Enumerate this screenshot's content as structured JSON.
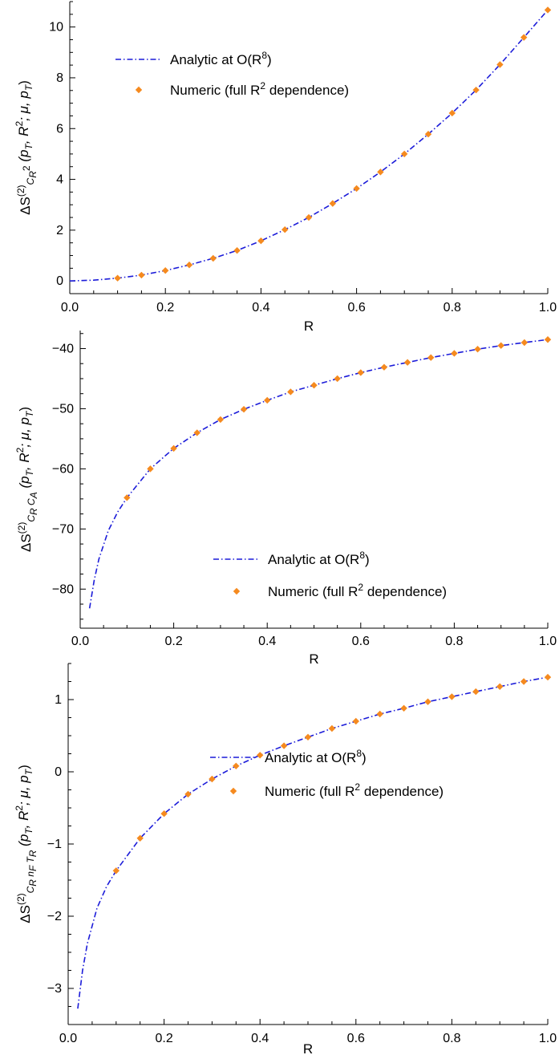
{
  "chart_data": [
    {
      "type": "line",
      "panel": 1,
      "xlabel": "R",
      "ylabel": {
        "prefix": "ΔS",
        "sup": "(2)",
        "sub": "C",
        "sub2": "R",
        "sub3": "2",
        "args": "(p",
        "argsub": "T",
        "mid": ", R",
        "midsup": "2",
        "tail": "; μ, p",
        "tailsub": "T",
        "close": ")"
      },
      "xlim": [
        0,
        1
      ],
      "ylim": [
        -0.5,
        11
      ],
      "xticks": [
        "0.0",
        "0.2",
        "0.4",
        "0.6",
        "0.8",
        "1.0"
      ],
      "xtick_values": [
        0,
        0.2,
        0.4,
        0.6,
        0.8,
        1.0
      ],
      "yticks": [
        "0",
        "2",
        "4",
        "6",
        "8",
        "10"
      ],
      "ytick_values": [
        0,
        2,
        4,
        6,
        8,
        10
      ],
      "legend_position": "top-left",
      "series": [
        {
          "name": "Analytic at O(R⁸)",
          "style": "dash-dot",
          "color": "#1c1cd9",
          "x": [
            0,
            0.05,
            0.1,
            0.15,
            0.2,
            0.25,
            0.3,
            0.35,
            0.4,
            0.45,
            0.5,
            0.55,
            0.6,
            0.65,
            0.7,
            0.75,
            0.8,
            0.85,
            0.9,
            0.95,
            1.0
          ],
          "y": [
            0,
            0.03,
            0.11,
            0.23,
            0.41,
            0.63,
            0.89,
            1.2,
            1.58,
            2.02,
            2.5,
            3.05,
            3.64,
            4.29,
            5.0,
            5.78,
            6.61,
            7.52,
            8.52,
            9.59,
            10.67
          ]
        },
        {
          "name": "Numeric (full R² dependence)",
          "style": "diamond",
          "color": "#f58a1f",
          "x": [
            0.1,
            0.15,
            0.2,
            0.25,
            0.3,
            0.35,
            0.4,
            0.45,
            0.5,
            0.55,
            0.6,
            0.65,
            0.7,
            0.75,
            0.8,
            0.85,
            0.9,
            0.95,
            1.0
          ],
          "y": [
            0.11,
            0.23,
            0.41,
            0.63,
            0.89,
            1.2,
            1.58,
            2.02,
            2.5,
            3.05,
            3.64,
            4.29,
            5.0,
            5.78,
            6.61,
            7.52,
            8.52,
            9.59,
            10.67
          ]
        }
      ]
    },
    {
      "type": "line",
      "panel": 2,
      "xlabel": "R",
      "ylabel": {
        "prefix": "ΔS",
        "sup": "(2)",
        "sub": "C",
        "sub2": "R",
        "sub3": " C",
        "sub4": "A",
        "args": "(p",
        "argsub": "T",
        "mid": ", R",
        "midsup": "2",
        "tail": "; μ, p",
        "tailsub": "T",
        "close": ")"
      },
      "xlim": [
        0,
        1
      ],
      "ylim": [
        -86.5,
        -37
      ],
      "xticks": [
        "0.0",
        "0.2",
        "0.4",
        "0.6",
        "0.8",
        "1.0"
      ],
      "xtick_values": [
        0,
        0.2,
        0.4,
        0.6,
        0.8,
        1.0
      ],
      "yticks": [
        "-80",
        "-70",
        "-60",
        "-50",
        "-40"
      ],
      "ytick_values": [
        -80,
        -70,
        -60,
        -50,
        -40
      ],
      "legend_position": "bottom-right",
      "series": [
        {
          "name": "Analytic at O(R⁸)",
          "style": "dash-dot",
          "color": "#1c1cd9",
          "x": [
            0.02,
            0.03,
            0.04,
            0.06,
            0.08,
            0.1,
            0.15,
            0.2,
            0.25,
            0.3,
            0.35,
            0.4,
            0.45,
            0.5,
            0.55,
            0.6,
            0.65,
            0.7,
            0.75,
            0.8,
            0.85,
            0.9,
            0.95,
            1.0
          ],
          "y": [
            -83.2,
            -78.5,
            -75.0,
            -70.3,
            -67.2,
            -64.8,
            -60.0,
            -56.6,
            -54.0,
            -51.8,
            -50.1,
            -48.6,
            -47.2,
            -46.1,
            -45.0,
            -44.0,
            -43.1,
            -42.3,
            -41.5,
            -40.8,
            -40.1,
            -39.5,
            -39.0,
            -38.5
          ]
        },
        {
          "name": "Numeric (full R² dependence)",
          "style": "diamond",
          "color": "#f58a1f",
          "x": [
            0.1,
            0.15,
            0.2,
            0.25,
            0.3,
            0.35,
            0.4,
            0.45,
            0.5,
            0.55,
            0.6,
            0.65,
            0.7,
            0.75,
            0.8,
            0.85,
            0.9,
            0.95,
            1.0
          ],
          "y": [
            -64.8,
            -60.0,
            -56.6,
            -54.0,
            -51.8,
            -50.1,
            -48.6,
            -47.2,
            -46.1,
            -45.0,
            -44.0,
            -43.1,
            -42.3,
            -41.5,
            -40.8,
            -40.1,
            -39.5,
            -39.0,
            -38.5
          ]
        }
      ]
    },
    {
      "type": "line",
      "panel": 3,
      "xlabel": "R",
      "ylabel": {
        "prefix": "ΔS",
        "sup": "(2)",
        "sub": "C",
        "sub2": "R",
        "sub3": " n",
        "sub4": "F",
        "sub5": " T",
        "sub6": "R",
        "args": "(p",
        "argsub": "T",
        "mid": ", R",
        "midsup": "2",
        "tail": "; μ, p",
        "tailsub": "T",
        "close": ")"
      },
      "xlim": [
        0,
        1
      ],
      "ylim": [
        -3.5,
        1.5
      ],
      "xticks": [
        "0.0",
        "0.2",
        "0.4",
        "0.6",
        "0.8",
        "1.0"
      ],
      "xtick_values": [
        0,
        0.2,
        0.4,
        0.6,
        0.8,
        1.0
      ],
      "yticks": [
        "-3",
        "-2",
        "-1",
        "0",
        "1"
      ],
      "ytick_values": [
        -3,
        -2,
        -1,
        0,
        1
      ],
      "legend_position": "bottom-right",
      "series": [
        {
          "name": "Analytic at O(R⁸)",
          "style": "dash-dot",
          "color": "#1c1cd9",
          "x": [
            0.02,
            0.03,
            0.04,
            0.06,
            0.08,
            0.1,
            0.15,
            0.2,
            0.25,
            0.3,
            0.35,
            0.4,
            0.45,
            0.5,
            0.55,
            0.6,
            0.65,
            0.7,
            0.75,
            0.8,
            0.85,
            0.9,
            0.95,
            1.0
          ],
          "y": [
            -3.28,
            -2.75,
            -2.38,
            -1.89,
            -1.59,
            -1.37,
            -0.92,
            -0.58,
            -0.31,
            -0.1,
            0.08,
            0.23,
            0.36,
            0.48,
            0.6,
            0.7,
            0.8,
            0.88,
            0.97,
            1.04,
            1.11,
            1.18,
            1.25,
            1.31
          ]
        },
        {
          "name": "Numeric (full R² dependence)",
          "style": "diamond",
          "color": "#f58a1f",
          "x": [
            0.1,
            0.15,
            0.2,
            0.25,
            0.3,
            0.35,
            0.4,
            0.45,
            0.5,
            0.55,
            0.6,
            0.65,
            0.7,
            0.75,
            0.8,
            0.85,
            0.9,
            0.95,
            1.0
          ],
          "y": [
            -1.37,
            -0.92,
            -0.58,
            -0.31,
            -0.1,
            0.08,
            0.23,
            0.36,
            0.48,
            0.6,
            0.7,
            0.8,
            0.88,
            0.97,
            1.04,
            1.11,
            1.18,
            1.25,
            1.31
          ]
        }
      ]
    }
  ]
}
